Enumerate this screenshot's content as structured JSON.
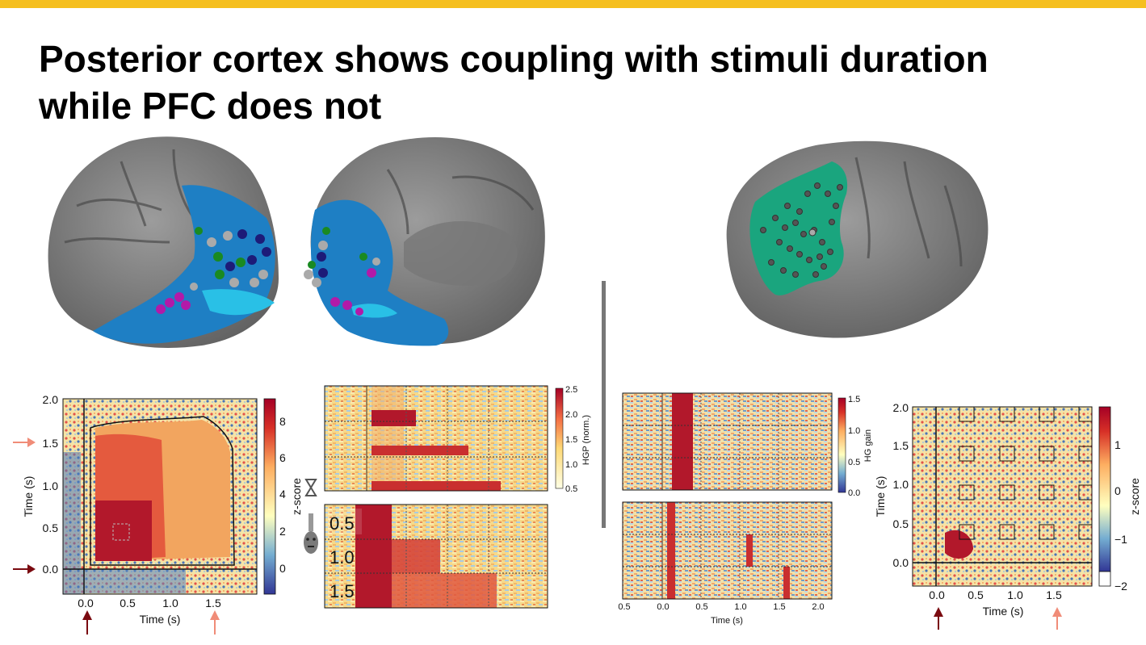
{
  "slide": {
    "title_line1": "Posterior cortex shows coupling with stimuli duration",
    "title_line2": "while PFC does not",
    "accent_color": "#f5bf1f"
  },
  "icons": [
    "brain-lateral-posterior",
    "brain-medial-posterior",
    "brain-lateral-pfc",
    "hourglass-icon",
    "face-icon",
    "arrow-up-icon",
    "arrow-right-icon"
  ],
  "left": {
    "tgm": {
      "x_ticks": [
        "0.0",
        "0.5",
        "1.0",
        "1.5"
      ],
      "y_ticks": [
        "0.0",
        "0.5",
        "1.0",
        "1.5",
        "2.0"
      ],
      "xlabel": "Time (s)",
      "ylabel": "Time (s)",
      "cbar_ticks": [
        "0",
        "2",
        "4",
        "6",
        "8"
      ],
      "cbar_label": "z-score",
      "arrow_bottom_labels": [
        "0.0",
        "1.5"
      ]
    },
    "raster": {
      "cbar_ticks": [
        "0.5",
        "1.0",
        "1.5",
        "2.0",
        "2.5"
      ],
      "cbar_label": "HGP (norm.)",
      "duration_labels": [
        "0.5",
        "1.0",
        "1.5"
      ]
    }
  },
  "right": {
    "raster": {
      "x_ticks": [
        "0.5",
        "0.0",
        "0.5",
        "1.0",
        "1.5",
        "2.0"
      ],
      "xlabel": "Time (s)",
      "cbar_ticks": [
        "0.0",
        "0.5",
        "1.0",
        "1.5"
      ],
      "cbar_label": "HG gain"
    },
    "tgm": {
      "x_ticks": [
        "0.0",
        "0.5",
        "1.0",
        "1.5"
      ],
      "y_ticks": [
        "0.0",
        "0.5",
        "1.0",
        "1.5",
        "2.0"
      ],
      "xlabel": "Time (s)",
      "ylabel": "Time (s)",
      "cbar_ticks": [
        "1",
        "0",
        "−1",
        "−2"
      ],
      "cbar_label": "z-score"
    }
  }
}
